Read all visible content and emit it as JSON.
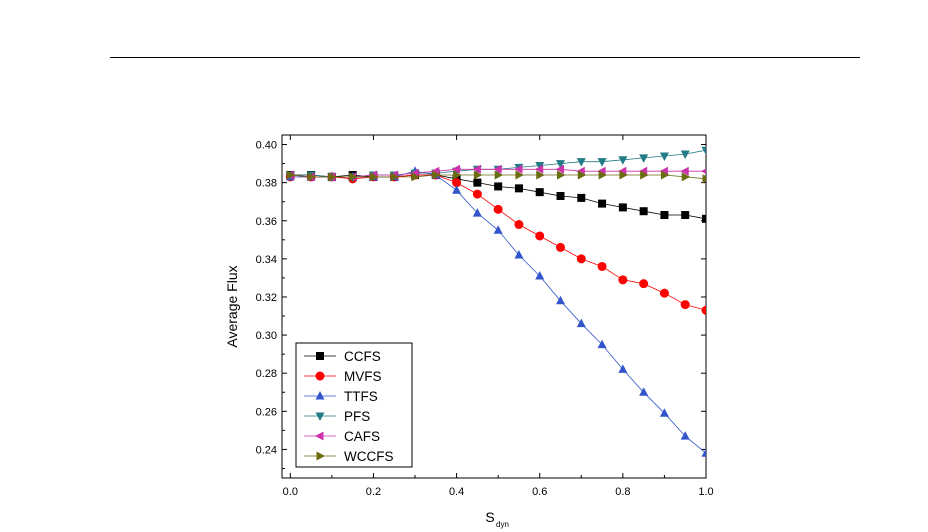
{
  "chart_data": {
    "type": "line",
    "xlabel": "S",
    "xlabel_sub": "dyn",
    "ylabel": "Average Flux",
    "xlim": [
      -0.02,
      1.0
    ],
    "ylim": [
      0.225,
      0.405
    ],
    "x_ticks": [
      "0.0",
      "0.2",
      "0.4",
      "0.6",
      "0.8",
      "1.0"
    ],
    "y_ticks": [
      "0.24",
      "0.26",
      "0.28",
      "0.30",
      "0.32",
      "0.34",
      "0.36",
      "0.38",
      "0.40"
    ],
    "grid": false,
    "legend_position": "bottom-left",
    "x": [
      0.0,
      0.05,
      0.1,
      0.15,
      0.2,
      0.25,
      0.3,
      0.35,
      0.4,
      0.45,
      0.5,
      0.55,
      0.6,
      0.65,
      0.7,
      0.75,
      0.8,
      0.85,
      0.9,
      0.95,
      1.0
    ],
    "series": [
      {
        "name": "CCFS",
        "color": "#000000",
        "marker": "square",
        "values": [
          0.384,
          0.384,
          0.383,
          0.384,
          0.383,
          0.383,
          0.384,
          0.384,
          0.382,
          0.38,
          0.378,
          0.377,
          0.375,
          0.373,
          0.372,
          0.369,
          0.367,
          0.365,
          0.363,
          0.363,
          0.361
        ]
      },
      {
        "name": "MVFS",
        "color": "#ff0000",
        "marker": "circle",
        "values": [
          0.383,
          0.383,
          0.383,
          0.382,
          0.383,
          0.383,
          0.384,
          0.384,
          0.38,
          0.374,
          0.366,
          0.358,
          0.352,
          0.346,
          0.34,
          0.336,
          0.329,
          0.327,
          0.322,
          0.316,
          0.313
        ]
      },
      {
        "name": "TTFS",
        "color": "#3355cc",
        "marker": "triangle-up",
        "values": [
          0.383,
          0.383,
          0.383,
          0.383,
          0.383,
          0.383,
          0.386,
          0.384,
          0.376,
          0.364,
          0.355,
          0.342,
          0.331,
          0.318,
          0.306,
          0.295,
          0.282,
          0.27,
          0.259,
          0.247,
          0.238
        ]
      },
      {
        "name": "PFS",
        "color": "#227b86",
        "marker": "triangle-down",
        "values": [
          0.384,
          0.384,
          0.383,
          0.383,
          0.384,
          0.384,
          0.385,
          0.385,
          0.386,
          0.387,
          0.387,
          0.388,
          0.389,
          0.39,
          0.391,
          0.391,
          0.392,
          0.393,
          0.394,
          0.395,
          0.397
        ]
      },
      {
        "name": "CAFS",
        "color": "#cc33aa",
        "marker": "triangle-left",
        "values": [
          0.384,
          0.383,
          0.383,
          0.383,
          0.384,
          0.384,
          0.385,
          0.386,
          0.387,
          0.387,
          0.387,
          0.387,
          0.387,
          0.387,
          0.386,
          0.386,
          0.386,
          0.386,
          0.386,
          0.386,
          0.386
        ]
      },
      {
        "name": "WCCFS",
        "color": "#6b6b10",
        "marker": "triangle-right",
        "values": [
          0.384,
          0.383,
          0.383,
          0.383,
          0.383,
          0.383,
          0.383,
          0.384,
          0.384,
          0.384,
          0.384,
          0.384,
          0.384,
          0.384,
          0.384,
          0.384,
          0.384,
          0.384,
          0.384,
          0.383,
          0.382
        ]
      }
    ]
  }
}
